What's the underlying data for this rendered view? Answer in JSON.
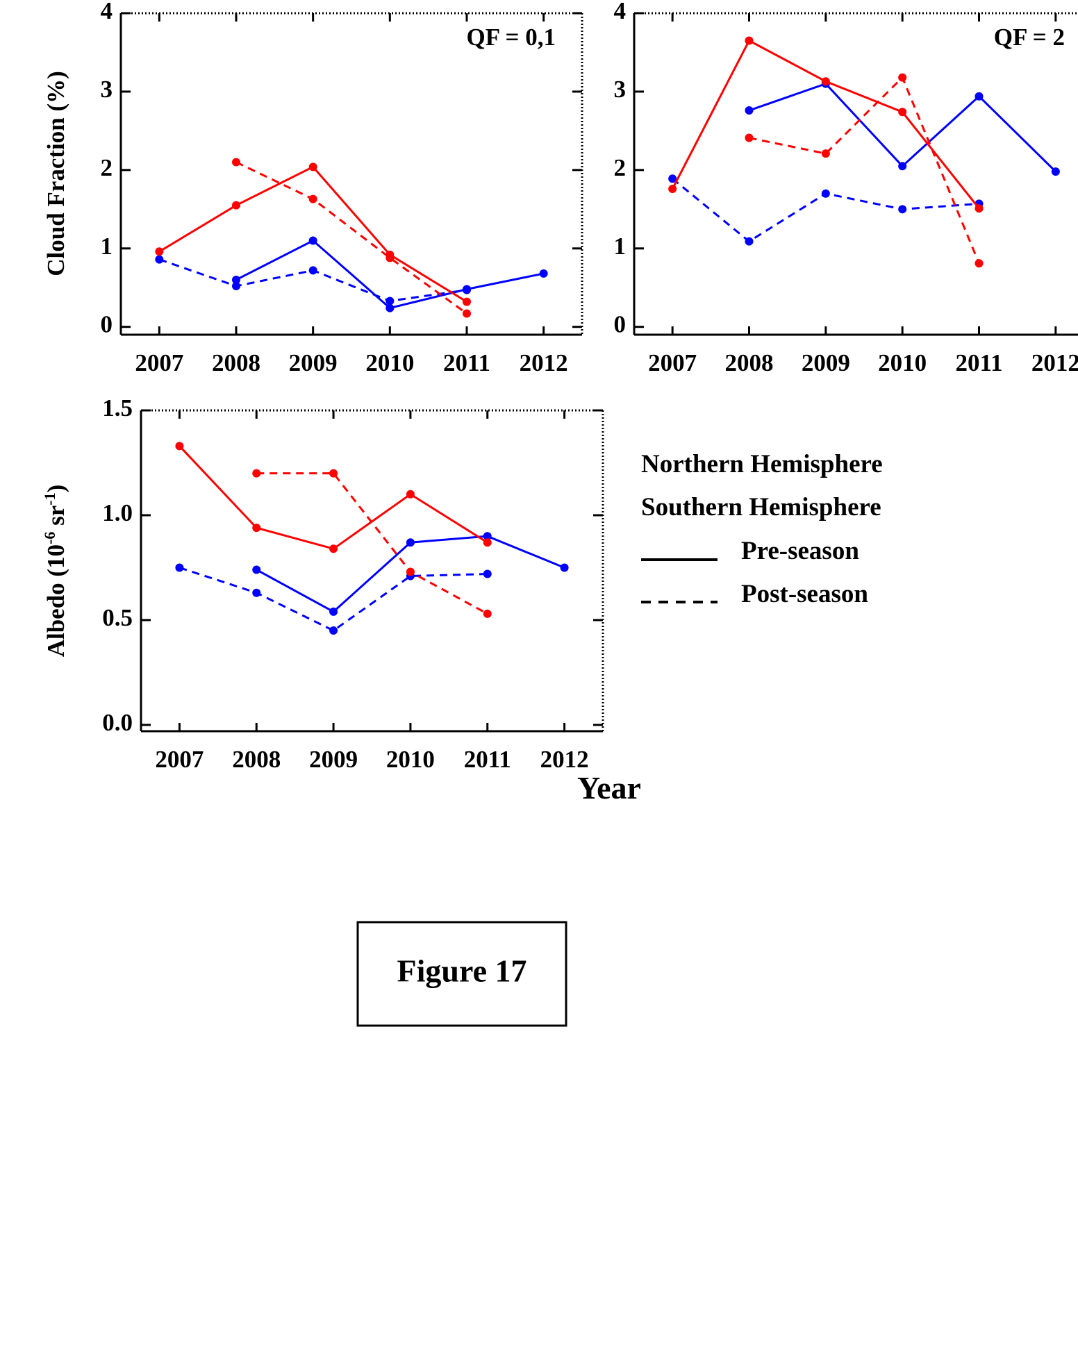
{
  "colors": {
    "north": "#0000ff",
    "south": "#ff0000",
    "text": "#000000"
  },
  "chart_data": [
    {
      "type": "line",
      "panel": "cloud-qf01",
      "title": "QF = 0,1",
      "ylabel": "Cloud Fraction (%)",
      "xlabel": "",
      "x": [
        2007,
        2008,
        2009,
        2010,
        2011,
        2012
      ],
      "xlim": [
        2006.5,
        2012.5
      ],
      "ylim": [
        -0.1,
        4
      ],
      "yticks": [
        0,
        1,
        2,
        3,
        4
      ],
      "ytick_labels": [
        "0",
        "1",
        "2",
        "3",
        "4"
      ],
      "xtick_labels": [
        "2007",
        "2008",
        "2009",
        "2010",
        "2011",
        "2012"
      ],
      "series": [
        {
          "name": "Northern Hemisphere Pre-season",
          "hemisphere": "north",
          "style": "solid",
          "values": [
            null,
            0.6,
            1.1,
            0.24,
            0.48,
            0.68
          ]
        },
        {
          "name": "Northern Hemisphere Post-season",
          "hemisphere": "north",
          "style": "dashed",
          "values": [
            0.86,
            0.52,
            0.72,
            0.33,
            0.47,
            null
          ]
        },
        {
          "name": "Southern Hemisphere Pre-season",
          "hemisphere": "south",
          "style": "solid",
          "values": [
            0.96,
            1.55,
            2.04,
            0.92,
            0.32,
            null
          ]
        },
        {
          "name": "Southern Hemisphere Post-season",
          "hemisphere": "south",
          "style": "dashed",
          "values": [
            null,
            2.1,
            1.63,
            0.88,
            0.17,
            null
          ]
        }
      ]
    },
    {
      "type": "line",
      "panel": "cloud-qf2",
      "title": "QF = 2",
      "ylabel": "",
      "xlabel": "",
      "x": [
        2007,
        2008,
        2009,
        2010,
        2011,
        2012
      ],
      "xlim": [
        2006.5,
        2012.5
      ],
      "ylim": [
        -0.1,
        4
      ],
      "yticks": [
        0,
        1,
        2,
        3,
        4
      ],
      "ytick_labels": [
        "0",
        "1",
        "2",
        "3",
        "4"
      ],
      "xtick_labels": [
        "2007",
        "2008",
        "2009",
        "2010",
        "2011",
        "2012"
      ],
      "series": [
        {
          "name": "Northern Hemisphere Pre-season",
          "hemisphere": "north",
          "style": "solid",
          "values": [
            null,
            2.76,
            3.1,
            2.05,
            2.94,
            1.98
          ]
        },
        {
          "name": "Northern Hemisphere Post-season",
          "hemisphere": "north",
          "style": "dashed",
          "values": [
            1.89,
            1.09,
            1.7,
            1.5,
            1.57,
            null
          ]
        },
        {
          "name": "Southern Hemisphere Pre-season",
          "hemisphere": "south",
          "style": "solid",
          "values": [
            1.76,
            3.65,
            3.13,
            2.74,
            1.51,
            null
          ]
        },
        {
          "name": "Southern Hemisphere Post-season",
          "hemisphere": "south",
          "style": "dashed",
          "values": [
            null,
            2.41,
            2.21,
            3.18,
            0.81,
            null
          ]
        }
      ]
    },
    {
      "type": "line",
      "panel": "albedo",
      "title": "",
      "ylabel": "Albedo (10",
      "ylabel_sup1": "-6",
      "ylabel_mid": " sr",
      "ylabel_sup2": "-1",
      "ylabel_end": ")",
      "xlabel": "Year",
      "x": [
        2007,
        2008,
        2009,
        2010,
        2011,
        2012
      ],
      "xlim": [
        2006.5,
        2012.5
      ],
      "ylim": [
        -0.03,
        1.5
      ],
      "yticks": [
        0.0,
        0.5,
        1.0,
        1.5
      ],
      "ytick_labels": [
        "0.0",
        "0.5",
        "1.0",
        "1.5"
      ],
      "xtick_labels": [
        "2007",
        "2008",
        "2009",
        "2010",
        "2011",
        "2012"
      ],
      "series": [
        {
          "name": "Northern Hemisphere Pre-season",
          "hemisphere": "north",
          "style": "solid",
          "values": [
            null,
            0.74,
            0.54,
            0.87,
            0.9,
            0.75
          ]
        },
        {
          "name": "Northern Hemisphere Post-season",
          "hemisphere": "north",
          "style": "dashed",
          "values": [
            0.75,
            0.63,
            0.45,
            0.71,
            0.72,
            null
          ]
        },
        {
          "name": "Southern Hemisphere Pre-season",
          "hemisphere": "south",
          "style": "solid",
          "values": [
            1.33,
            0.94,
            0.84,
            1.1,
            0.87,
            null
          ]
        },
        {
          "name": "Southern Hemisphere Post-season",
          "hemisphere": "south",
          "style": "dashed",
          "values": [
            null,
            1.2,
            1.2,
            0.73,
            0.53,
            null
          ]
        }
      ]
    }
  ],
  "legend": {
    "north_label": "Northern Hemisphere",
    "south_label": "Southern Hemisphere",
    "pre_label": "Pre-season",
    "post_label": "Post-season"
  },
  "caption": "Figure 17"
}
